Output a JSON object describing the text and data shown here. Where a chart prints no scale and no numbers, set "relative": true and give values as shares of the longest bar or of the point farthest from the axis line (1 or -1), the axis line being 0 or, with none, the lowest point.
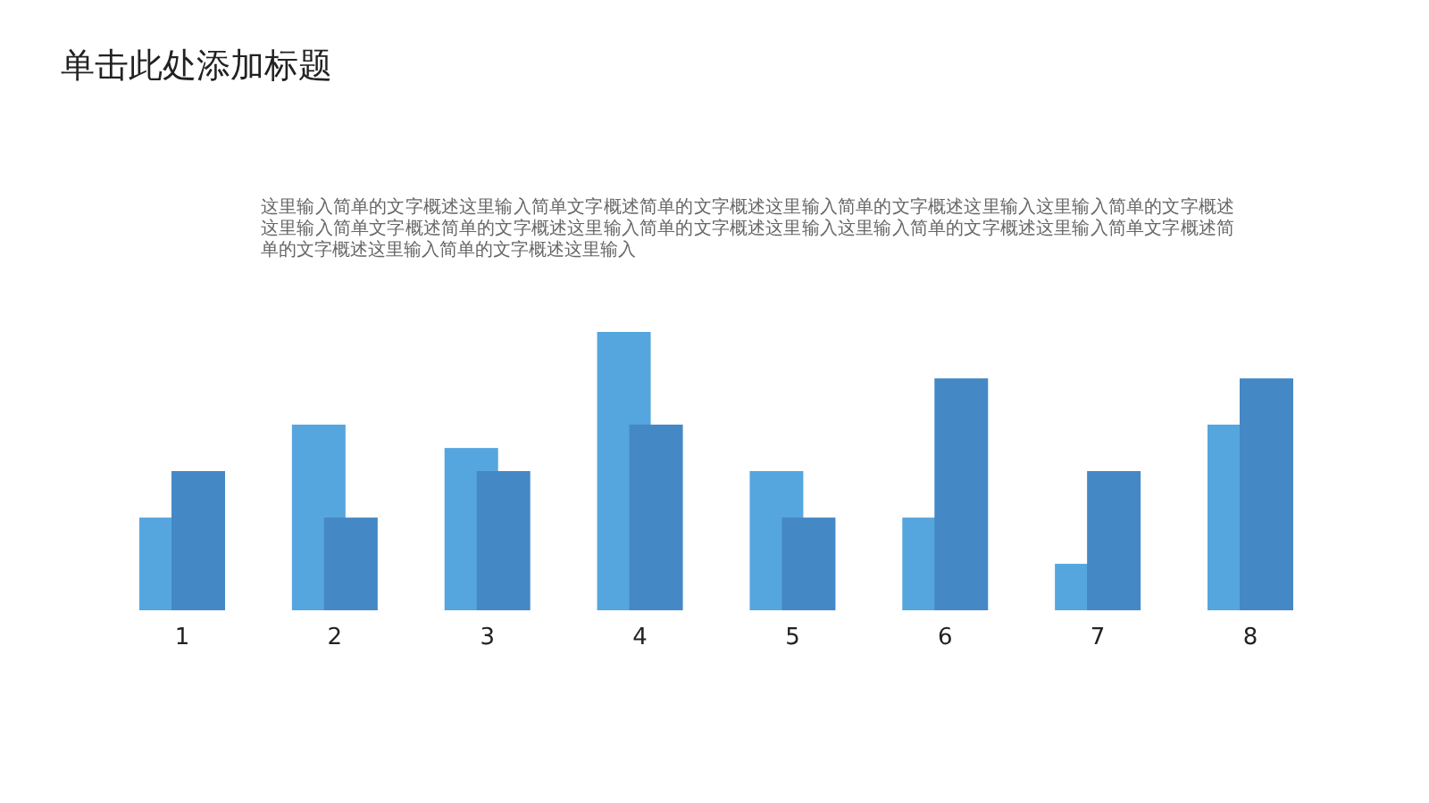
{
  "chart_data": {
    "type": "bar",
    "title": "单击此处添加标题",
    "subtitle": "这里输入简单的文字概述这里输入简单文字概述简单的文字概述这里输入简单的文字概述这里输入这里输入简单的文字概述这里输入简单文字概述简单的文字概述这里输入简单的文字概述这里输入这里输入简单的文字概述这里输入简单文字概述简单的文字概述这里输入简单的文字概述这里输入",
    "categories": [
      "1",
      "2",
      "3",
      "4",
      "5",
      "6",
      "7",
      "8"
    ],
    "relative": true,
    "series": [
      {
        "color": "#55a6de",
        "values": [
          0.333,
          0.667,
          0.583,
          1,
          0.5,
          0.333,
          0.167,
          0.667
        ]
      },
      {
        "color": "#4588c6",
        "values": [
          0.5,
          0.333,
          0.5,
          0.667,
          0.333,
          0.833,
          0.5,
          0.833
        ]
      }
    ]
  }
}
